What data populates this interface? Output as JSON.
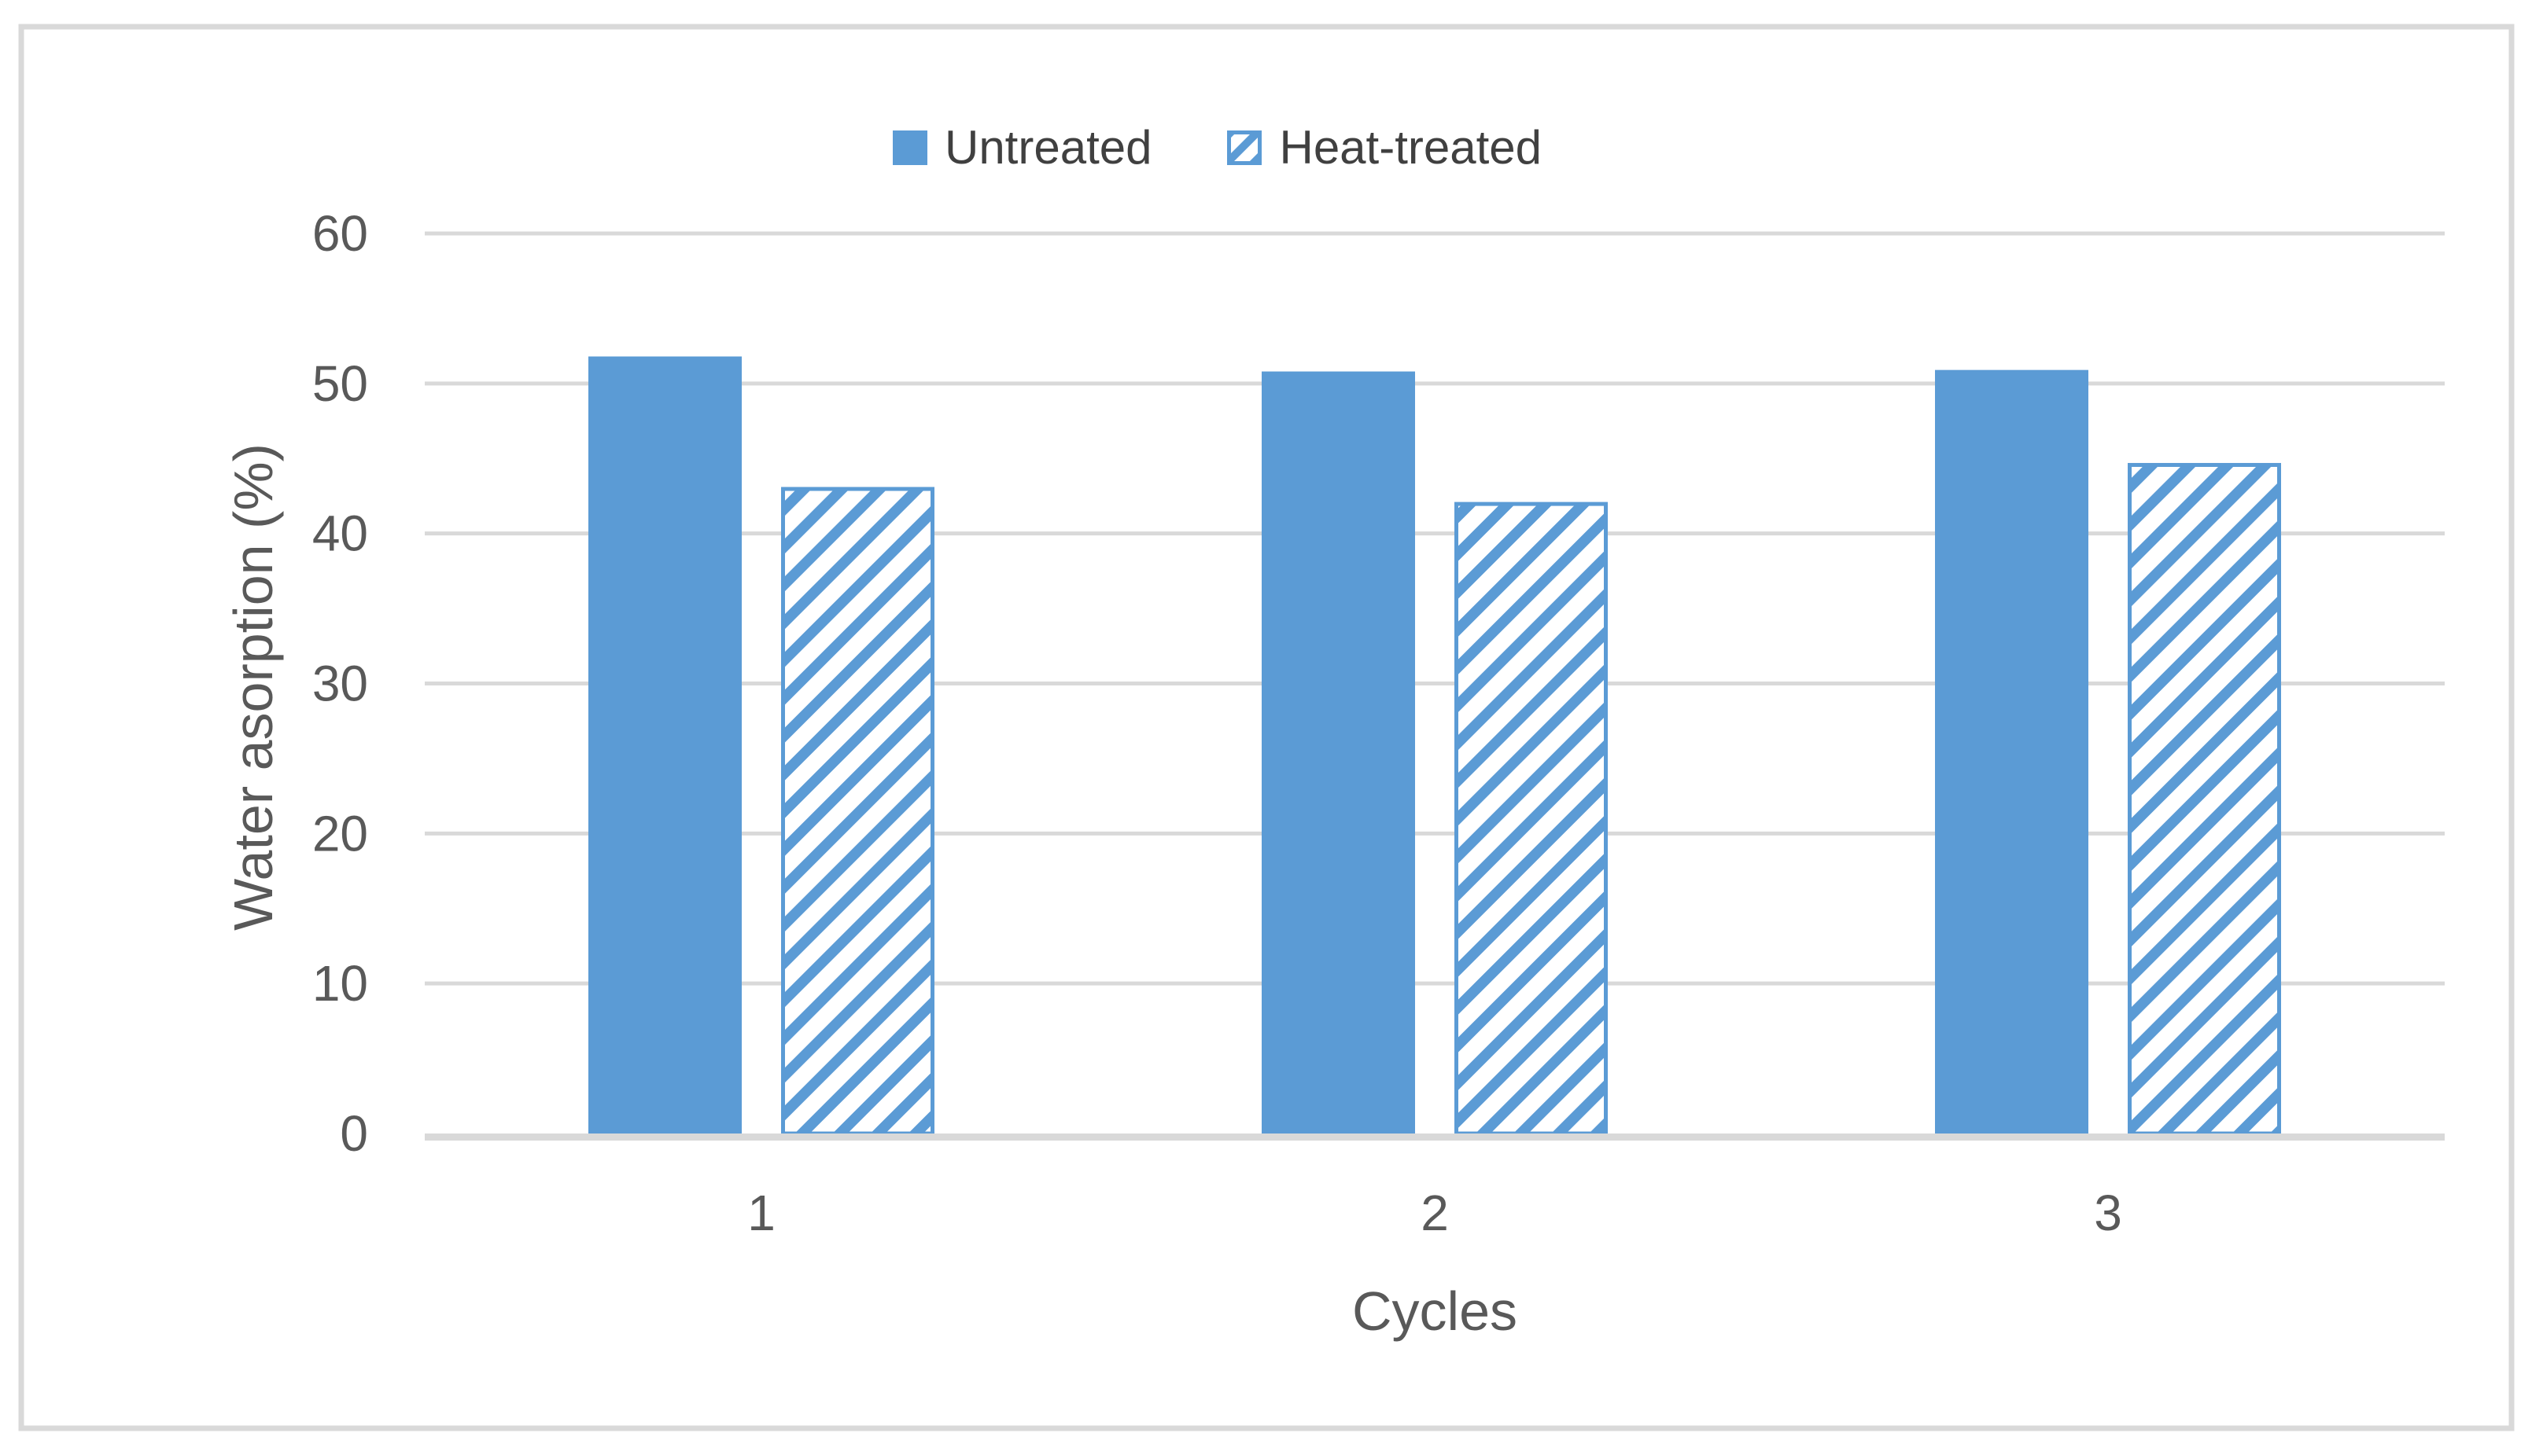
{
  "figure": {
    "background": "#FFFFFF"
  },
  "chart_data": {
    "type": "bar",
    "title": "",
    "categories": [
      "1",
      "2",
      "3"
    ],
    "series": [
      {
        "name": "Untreated",
        "pattern": "solid",
        "values": [
          51.8,
          50.8,
          50.9
        ]
      },
      {
        "name": "Heat-treated",
        "pattern": "diagonal-hatch",
        "values": [
          43.1,
          42.1,
          44.7
        ]
      }
    ],
    "xlabel": "Cycles",
    "ylabel": "Water asorption (%)",
    "ylim": [
      0,
      60
    ],
    "yticks": [
      0,
      10,
      20,
      30,
      40,
      50,
      60
    ],
    "grid": "horizontal",
    "legend_position": "top-center"
  },
  "colors": {
    "bar": "#5B9BD5",
    "grid": "#D9D9D9",
    "axis": "#D9D9D9",
    "border": "#D9D9D9",
    "tick_text": "#595959",
    "legend_text": "#404040",
    "plot_background": "#FFFFFF"
  }
}
